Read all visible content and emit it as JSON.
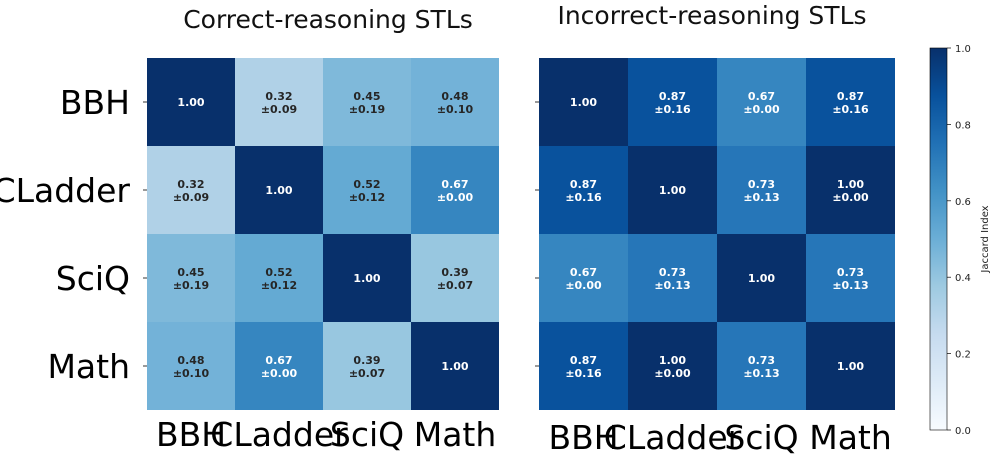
{
  "chart_data": [
    {
      "type": "heatmap",
      "title": "Correct-reasoning STLs",
      "rows": [
        "BBH",
        "CLadder",
        "SciQ",
        "Math"
      ],
      "cols": [
        "BBH",
        "CLadder",
        "SciQ",
        "Math"
      ],
      "values": [
        [
          1.0,
          0.32,
          0.45,
          0.48
        ],
        [
          0.32,
          1.0,
          0.52,
          0.67
        ],
        [
          0.45,
          0.52,
          1.0,
          0.39
        ],
        [
          0.48,
          0.67,
          0.39,
          1.0
        ]
      ],
      "labels": [
        [
          "1.00",
          "0.32\n±0.09",
          "0.45\n±0.19",
          "0.48\n±0.10"
        ],
        [
          "0.32\n±0.09",
          "1.00",
          "0.52\n±0.12",
          "0.67\n±0.00"
        ],
        [
          "0.45\n±0.19",
          "0.52\n±0.12",
          "1.00",
          "0.39\n±0.07"
        ],
        [
          "0.48\n±0.10",
          "0.67\n±0.00",
          "0.39\n±0.07",
          "1.00"
        ]
      ]
    },
    {
      "type": "heatmap",
      "title": "Incorrect-reasoning STLs",
      "rows": [
        "BBH",
        "CLadder",
        "SciQ",
        "Math"
      ],
      "cols": [
        "BBH",
        "CLadder",
        "SciQ",
        "Math"
      ],
      "values": [
        [
          1.0,
          0.87,
          0.67,
          0.87
        ],
        [
          0.87,
          1.0,
          0.73,
          1.0
        ],
        [
          0.67,
          0.73,
          1.0,
          0.73
        ],
        [
          0.87,
          1.0,
          0.73,
          1.0
        ]
      ],
      "labels": [
        [
          "1.00",
          "0.87\n±0.16",
          "0.67\n±0.00",
          "0.87\n±0.16"
        ],
        [
          "0.87\n±0.16",
          "1.00",
          "0.73\n±0.13",
          "1.00\n±0.00"
        ],
        [
          "0.67\n±0.00",
          "0.73\n±0.13",
          "1.00",
          "0.73\n±0.13"
        ],
        [
          "0.87\n±0.16",
          "1.00\n±0.00",
          "0.73\n±0.13",
          "1.00"
        ]
      ]
    }
  ],
  "colorbar": {
    "label": "Jaccard Index",
    "ticks": [
      "0.0",
      "0.2",
      "0.4",
      "0.6",
      "0.8",
      "1.0"
    ],
    "range": [
      0,
      1
    ],
    "colormap": [
      "#f7fbff",
      "#deebf7",
      "#c6dbef",
      "#9ecae1",
      "#6baed6",
      "#4292c6",
      "#2171b5",
      "#08519c",
      "#08306b"
    ]
  }
}
